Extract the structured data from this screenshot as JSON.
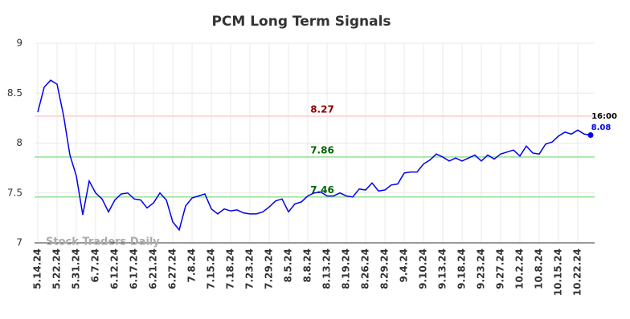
{
  "chart_data": {
    "type": "line",
    "title": "PCM Long Term Signals",
    "watermark": "Stock Traders Daily",
    "categories": [
      "5.14.24",
      null,
      null,
      "5.22.24",
      null,
      null,
      "5.31.24",
      null,
      null,
      "6.7.24",
      null,
      null,
      "6.12.24",
      null,
      null,
      "6.17.24",
      null,
      null,
      "6.21.24",
      null,
      null,
      "6.27.24",
      null,
      null,
      "7.8.24",
      null,
      null,
      "7.15.24",
      null,
      null,
      "7.18.24",
      null,
      null,
      "7.23.24",
      null,
      null,
      "7.29.24",
      null,
      null,
      "8.5.24",
      null,
      null,
      "8.8.24",
      null,
      null,
      "8.13.24",
      null,
      null,
      "8.19.24",
      null,
      null,
      "8.26.24",
      null,
      null,
      "8.29.24",
      null,
      null,
      "9.4.24",
      null,
      null,
      "9.10.24",
      null,
      null,
      "9.13.24",
      null,
      null,
      "9.18.24",
      null,
      null,
      "9.23.24",
      null,
      null,
      "9.27.24",
      null,
      null,
      "10.2.24",
      null,
      null,
      "10.8.24",
      null,
      null,
      "10.15.24",
      null,
      null,
      "10.22.24",
      null,
      null
    ],
    "series": [
      {
        "name": "PCM",
        "color": "#0000ee",
        "values": [
          8.31,
          8.56,
          8.63,
          8.59,
          8.28,
          7.88,
          7.67,
          7.28,
          7.62,
          7.5,
          7.44,
          7.31,
          7.43,
          7.49,
          7.5,
          7.44,
          7.43,
          7.35,
          7.4,
          7.5,
          7.43,
          7.21,
          7.13,
          7.37,
          7.45,
          7.47,
          7.49,
          7.34,
          7.29,
          7.34,
          7.32,
          7.33,
          7.3,
          7.29,
          7.29,
          7.31,
          7.36,
          7.42,
          7.44,
          7.31,
          7.39,
          7.41,
          7.47,
          7.5,
          7.51,
          7.47,
          7.47,
          7.5,
          7.47,
          7.46,
          7.54,
          7.53,
          7.6,
          7.52,
          7.53,
          7.58,
          7.59,
          7.7,
          7.71,
          7.71,
          7.79,
          7.83,
          7.89,
          7.86,
          7.82,
          7.85,
          7.82,
          7.85,
          7.88,
          7.82,
          7.88,
          7.84,
          7.89,
          7.91,
          7.93,
          7.87,
          7.97,
          7.9,
          7.89,
          7.99,
          8.01,
          8.07,
          8.11,
          8.09,
          8.13,
          8.09,
          8.08
        ]
      }
    ],
    "last_time_label": "16:00",
    "hlines": [
      {
        "value": 8.27,
        "color": "#ffcccc",
        "label_color": "#8b0000"
      },
      {
        "value": 7.86,
        "color": "#90e090",
        "label_color": "#006400"
      },
      {
        "value": 7.46,
        "color": "#90e090",
        "label_color": "#006400"
      }
    ],
    "ylim": [
      7,
      9
    ],
    "yticks": [
      7,
      7.5,
      8,
      8.5,
      9
    ],
    "grid": true
  }
}
